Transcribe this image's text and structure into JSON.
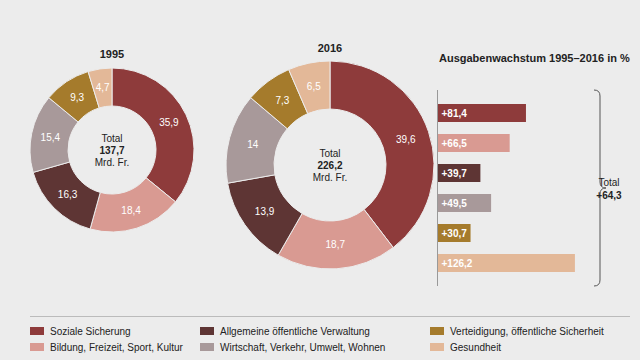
{
  "chart_data": [
    {
      "type": "pie",
      "title": "1995",
      "categories": [
        "Soziale Sicherung",
        "Bildung, Freizeit, Sport, Kultur",
        "Allgemeine öffentliche Verwaltung",
        "Wirtschaft, Verkehr, Umwelt, Wohnen",
        "Verteidigung, öffentliche Sicherheit",
        "Gesundheit"
      ],
      "values": [
        35.9,
        18.4,
        16.3,
        15.4,
        9.3,
        4.7
      ],
      "value_labels": [
        "35,9",
        "18,4",
        "16,3",
        "15,4",
        "9,3",
        "4,7"
      ],
      "colors": [
        "#8e3b3b",
        "#d99a92",
        "#5e3534",
        "#a8999a",
        "#a57b2c",
        "#e3b898"
      ],
      "data_labels": true,
      "legend": "bottom",
      "total": {
        "title": "Total",
        "value": 137.7,
        "label": "137,7",
        "unit": "Mrd. Fr."
      }
    },
    {
      "type": "pie",
      "title": "2016",
      "categories": [
        "Soziale Sicherung",
        "Bildung, Freizeit, Sport, Kultur",
        "Allgemeine öffentliche Verwaltung",
        "Wirtschaft, Verkehr, Umwelt, Wohnen",
        "Verteidigung, öffentliche Sicherheit",
        "Gesundheit"
      ],
      "values": [
        39.6,
        18.7,
        13.9,
        14,
        7.3,
        6.5
      ],
      "value_labels": [
        "39,6",
        "18,7",
        "13,9",
        "14",
        "7,3",
        "6,5"
      ],
      "colors": [
        "#8e3b3b",
        "#d99a92",
        "#5e3534",
        "#a8999a",
        "#a57b2c",
        "#e3b898"
      ],
      "data_labels": true,
      "total": {
        "title": "Total",
        "value": 226.2,
        "label": "226,2",
        "unit": "Mrd. Fr."
      }
    },
    {
      "type": "bar",
      "orientation": "horizontal",
      "title": "Ausgabenwachstum 1995–2016 in %",
      "categories": [
        null,
        null,
        null,
        null,
        null,
        null
      ],
      "values": [
        81.4,
        66.5,
        39.7,
        49.5,
        30.7,
        126.2
      ],
      "value_labels": [
        "+81,4",
        "+66,5",
        "+39,7",
        "+49,5",
        "+30,7",
        "+126,2"
      ],
      "colors": [
        "#8e3b3b",
        "#d99a92",
        "#5e3534",
        "#a8999a",
        "#a57b2c",
        "#e3b898"
      ],
      "data_labels": true,
      "tick_labels": false,
      "xlim": [
        0,
        140
      ],
      "xticks": [],
      "total": {
        "title": "Total",
        "value": 64.3,
        "label": "+64,3"
      }
    }
  ]
}
